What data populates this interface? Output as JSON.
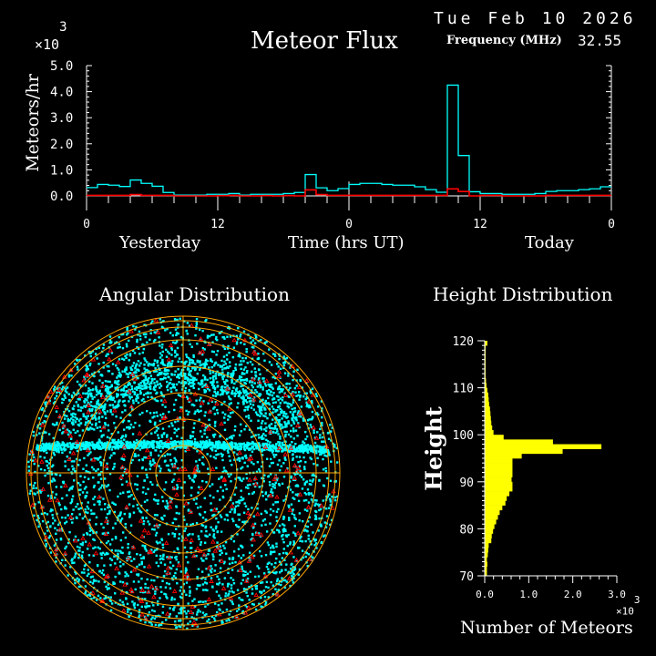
{
  "header": {
    "date": "Tue Feb 10 2026",
    "frequency_label": "Frequency (MHz)",
    "frequency_value": "32.55"
  },
  "colors": {
    "background": "#000000",
    "axis": "#ffffff",
    "flux_all": "#00ffff",
    "flux_secondary": "#ff0000",
    "height_bars": "#ffff00",
    "polar_grid": "#ffa500",
    "points_primary": "#00ffff",
    "points_secondary": "#ff0000"
  },
  "chart_data": [
    {
      "type": "line",
      "title": "Meteor Flux",
      "ylabel": "Meteors/hr",
      "xlabel": "Time (hrs UT)",
      "y_multiplier": "x10^3",
      "y_multiplier_text": {
        "base": "×10",
        "exp": "3"
      },
      "ylim": [
        0,
        5.0
      ],
      "yticks": [
        "0.0",
        "1.0",
        "2.0",
        "3.0",
        "4.0",
        "5.0"
      ],
      "xlim_hours": [
        0,
        48
      ],
      "xticks": [
        "0",
        "12",
        "0",
        "12",
        "0"
      ],
      "day_labels": [
        "Yesterday",
        "Today"
      ],
      "step": true,
      "series": [
        {
          "color": "#00ffff",
          "values": [
            0.32,
            0.44,
            0.41,
            0.36,
            0.61,
            0.48,
            0.37,
            0.13,
            0.03,
            0.03,
            0.03,
            0.06,
            0.06,
            0.09,
            0.03,
            0.06,
            0.06,
            0.06,
            0.09,
            0.13,
            0.82,
            0.31,
            0.2,
            0.28,
            0.44,
            0.48,
            0.48,
            0.44,
            0.41,
            0.41,
            0.35,
            0.24,
            0.14,
            4.25,
            1.55,
            0.16,
            0.09,
            0.09,
            0.06,
            0.06,
            0.06,
            0.09,
            0.17,
            0.2,
            0.2,
            0.24,
            0.27,
            0.35
          ]
        },
        {
          "color": "#ff0000",
          "values": [
            0.02,
            0.02,
            0.02,
            0.02,
            0.05,
            0.02,
            0.02,
            0.02,
            0.0,
            0.0,
            0.0,
            0.0,
            0.01,
            0.02,
            0.0,
            0.0,
            0.01,
            0.0,
            0.01,
            0.0,
            0.23,
            0.05,
            0.02,
            0.02,
            0.02,
            0.02,
            0.02,
            0.02,
            0.02,
            0.02,
            0.02,
            0.02,
            0.02,
            0.27,
            0.17,
            0.0,
            0.02,
            0.02,
            0.0,
            0.0,
            0.0,
            0.0,
            0.02,
            0.02,
            0.02,
            0.02,
            0.02,
            0.02
          ]
        }
      ]
    },
    {
      "type": "scatter",
      "title": "Angular Distribution",
      "projection": "polar"
    },
    {
      "type": "bar",
      "orientation": "horizontal",
      "title": "Height Distribution",
      "ylabel": "Height",
      "xlabel": "Number of Meteors",
      "x_multiplier": "x10^3",
      "x_multiplier_text": {
        "base": "×10",
        "exp": "3"
      },
      "ylim": [
        70,
        120
      ],
      "yticks": [
        "70",
        "80",
        "90",
        "100",
        "110",
        "120"
      ],
      "xlim": [
        0,
        3.0
      ],
      "xticks": [
        "0.0",
        "1.0",
        "2.0",
        "3.0"
      ],
      "bin_lower_edges": [
        70,
        71,
        72,
        73,
        74,
        75,
        76,
        77,
        78,
        79,
        80,
        81,
        82,
        83,
        84,
        85,
        86,
        87,
        88,
        89,
        90,
        91,
        92,
        93,
        94,
        95,
        96,
        97,
        98,
        99,
        100,
        101,
        102,
        103,
        104,
        105,
        106,
        107,
        108,
        109,
        110,
        111,
        112,
        113,
        114,
        115,
        116,
        117,
        118,
        119
      ],
      "values": [
        0.05,
        0.05,
        0.06,
        0.05,
        0.07,
        0.08,
        0.09,
        0.15,
        0.16,
        0.19,
        0.22,
        0.26,
        0.3,
        0.34,
        0.4,
        0.47,
        0.5,
        0.56,
        0.63,
        0.63,
        0.61,
        0.63,
        0.63,
        0.63,
        0.63,
        0.84,
        1.77,
        2.65,
        1.55,
        0.43,
        0.2,
        0.17,
        0.15,
        0.14,
        0.13,
        0.12,
        0.1,
        0.09,
        0.08,
        0.06,
        0.04,
        0.03,
        0.02,
        0.02,
        0.02,
        0.02,
        0.02,
        0.02,
        0.02,
        0.06
      ]
    }
  ]
}
